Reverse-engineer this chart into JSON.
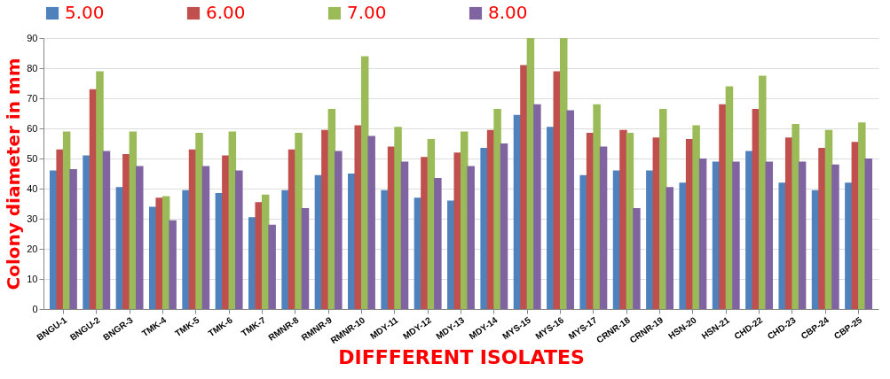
{
  "chart_data": {
    "type": "bar",
    "xlabel": "DIFFFERENT ISOLATES",
    "ylabel": "Colony diameter in mm",
    "categories": [
      "BNGU-1",
      "BNGU-2",
      "BNGR-3",
      "TMK-4",
      "TMK-5",
      "TMK-6",
      "TMK-7",
      "RMNR-8",
      "RMNR-9",
      "RMNR-10",
      "MDY-11",
      "MDY-12",
      "MDY-13",
      "MDY-14",
      "MYS-15",
      "MYS-16",
      "MYS-17",
      "CRNR-18",
      "CRNR-19",
      "HSN-20",
      "HSN-21",
      "CHD-22",
      "CHD-23",
      "CBP-24",
      "CBP-25"
    ],
    "series": [
      {
        "name": "5.00",
        "color": "#4f81bd",
        "values": [
          46,
          51,
          40.5,
          34,
          39.5,
          38.5,
          30.5,
          39.5,
          44.5,
          45,
          39.5,
          37,
          36,
          53.5,
          64.5,
          60.5,
          44.5,
          46,
          46,
          42,
          49,
          52.5,
          42,
          39.5,
          42
        ]
      },
      {
        "name": "6.00",
        "color": "#c0504d",
        "values": [
          53,
          73,
          51.5,
          37,
          53,
          51,
          35.5,
          53,
          59.5,
          61,
          54,
          50.5,
          52,
          59.5,
          81,
          79,
          58.5,
          59.5,
          57,
          56.5,
          68,
          66.5,
          57,
          53.5,
          55.5
        ]
      },
      {
        "name": "7.00",
        "color": "#9bbb59",
        "values": [
          59,
          79,
          59,
          37.5,
          58.5,
          59,
          38,
          58.5,
          66.5,
          84,
          60.5,
          56.5,
          59,
          66.5,
          90,
          90,
          68,
          58.5,
          66.5,
          61,
          74,
          77.5,
          61.5,
          59.5,
          62
        ]
      },
      {
        "name": "8.00",
        "color": "#8064a2",
        "values": [
          46.5,
          52.5,
          47.5,
          29.5,
          47.5,
          46,
          28,
          33.5,
          52.5,
          57.5,
          49,
          43.5,
          47.5,
          55,
          68,
          66,
          54,
          33.5,
          40.5,
          50,
          49,
          49,
          49,
          48,
          50
        ]
      }
    ],
    "ylim": [
      0,
      90
    ],
    "yticks": [
      0,
      10,
      20,
      30,
      40,
      50,
      60,
      70,
      80,
      90
    ],
    "grid": "y",
    "legend": "top"
  }
}
